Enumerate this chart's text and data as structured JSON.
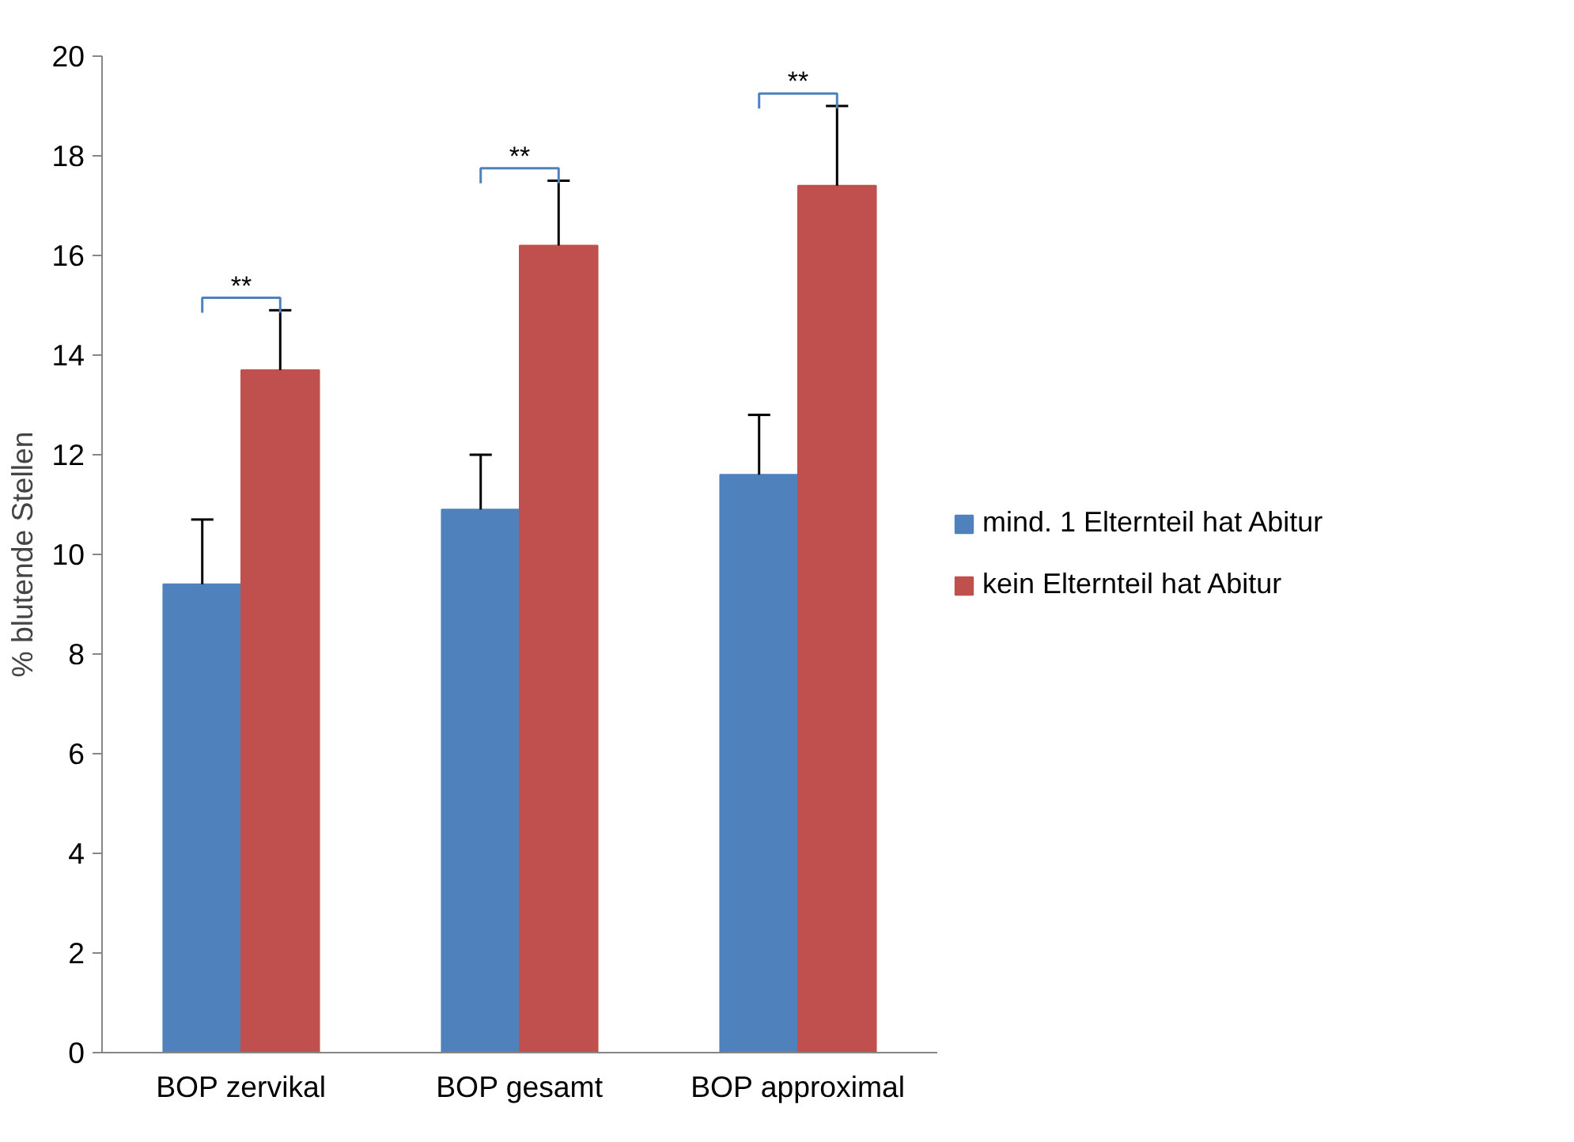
{
  "chart_data": {
    "type": "bar",
    "ylabel": "% blutende Stellen",
    "categories": [
      "BOP zervikal",
      "BOP gesamt",
      "BOP approximal"
    ],
    "series": [
      {
        "name": "mind. 1 Elternteil hat Abitur",
        "color": "#4f81bd",
        "values": [
          9.4,
          10.9,
          11.6
        ],
        "errors": [
          [
            9.4,
            10.7
          ],
          [
            10.9,
            12.0
          ],
          [
            11.6,
            12.8
          ]
        ]
      },
      {
        "name": "kein Elternteil hat Abitur",
        "color": "#c0504d",
        "values": [
          13.7,
          16.2,
          17.4
        ],
        "errors": [
          [
            13.7,
            14.9
          ],
          [
            16.2,
            17.5
          ],
          [
            17.4,
            19.0
          ]
        ]
      }
    ],
    "ylim": [
      0,
      20
    ],
    "yticks": [
      0,
      2,
      4,
      6,
      8,
      10,
      12,
      14,
      16,
      18,
      20
    ],
    "grid": false,
    "legend": "right",
    "annotations": [
      "**",
      "**",
      "**"
    ]
  }
}
